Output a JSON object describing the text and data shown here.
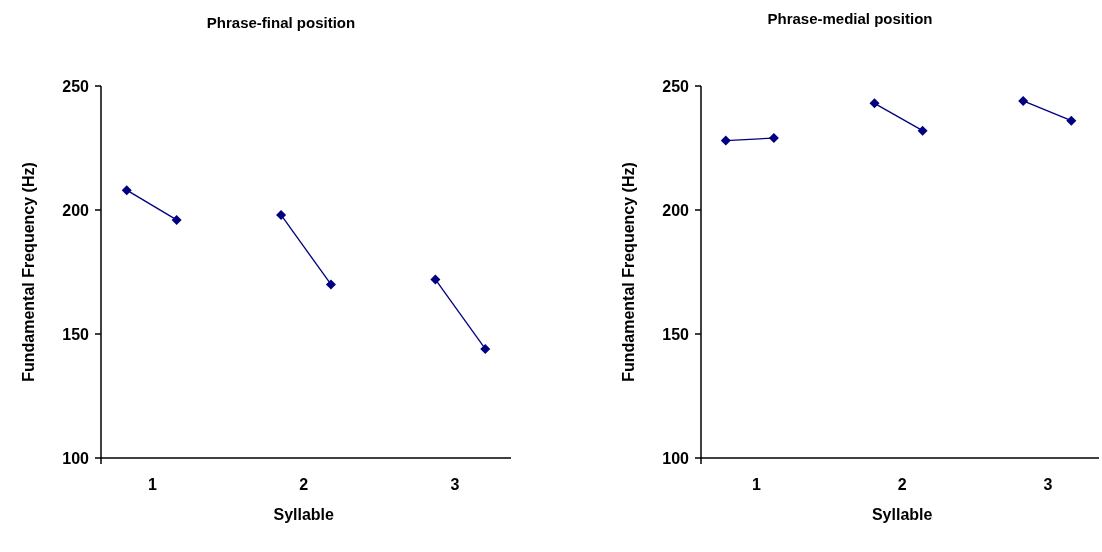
{
  "chart_data": [
    {
      "type": "line",
      "title": "Phrase-final position",
      "xlabel": "Syllable",
      "ylabel": "Fundamental Frequency (Hz)",
      "xlim": [
        0.66,
        3.37
      ],
      "xticks": [
        1,
        2,
        3
      ],
      "ylim": [
        100,
        250
      ],
      "yticks": [
        100,
        150,
        200,
        250
      ],
      "marker": "diamond",
      "series": [
        {
          "color": "#000080",
          "x": [
            0.83,
            1.16
          ],
          "values": [
            208,
            196
          ]
        },
        {
          "color": "#000080",
          "x": [
            1.85,
            2.18
          ],
          "values": [
            198,
            170
          ]
        },
        {
          "color": "#000080",
          "x": [
            2.87,
            3.2
          ],
          "values": [
            172,
            144
          ]
        }
      ]
    },
    {
      "type": "line",
      "title": "Phrase-medial position",
      "xlabel": "Syllable",
      "ylabel": "Fundamental Frequency (Hz)",
      "xlim": [
        0.62,
        3.35
      ],
      "xticks": [
        1,
        2,
        3
      ],
      "ylim": [
        100,
        250
      ],
      "yticks": [
        100,
        150,
        200,
        250
      ],
      "marker": "diamond",
      "series": [
        {
          "color": "#000080",
          "x": [
            0.79,
            1.12
          ],
          "values": [
            228,
            229
          ]
        },
        {
          "color": "#000080",
          "x": [
            1.81,
            2.14
          ],
          "values": [
            243,
            232
          ]
        },
        {
          "color": "#000080",
          "x": [
            2.83,
            3.16
          ],
          "values": [
            244,
            236
          ]
        }
      ]
    }
  ]
}
